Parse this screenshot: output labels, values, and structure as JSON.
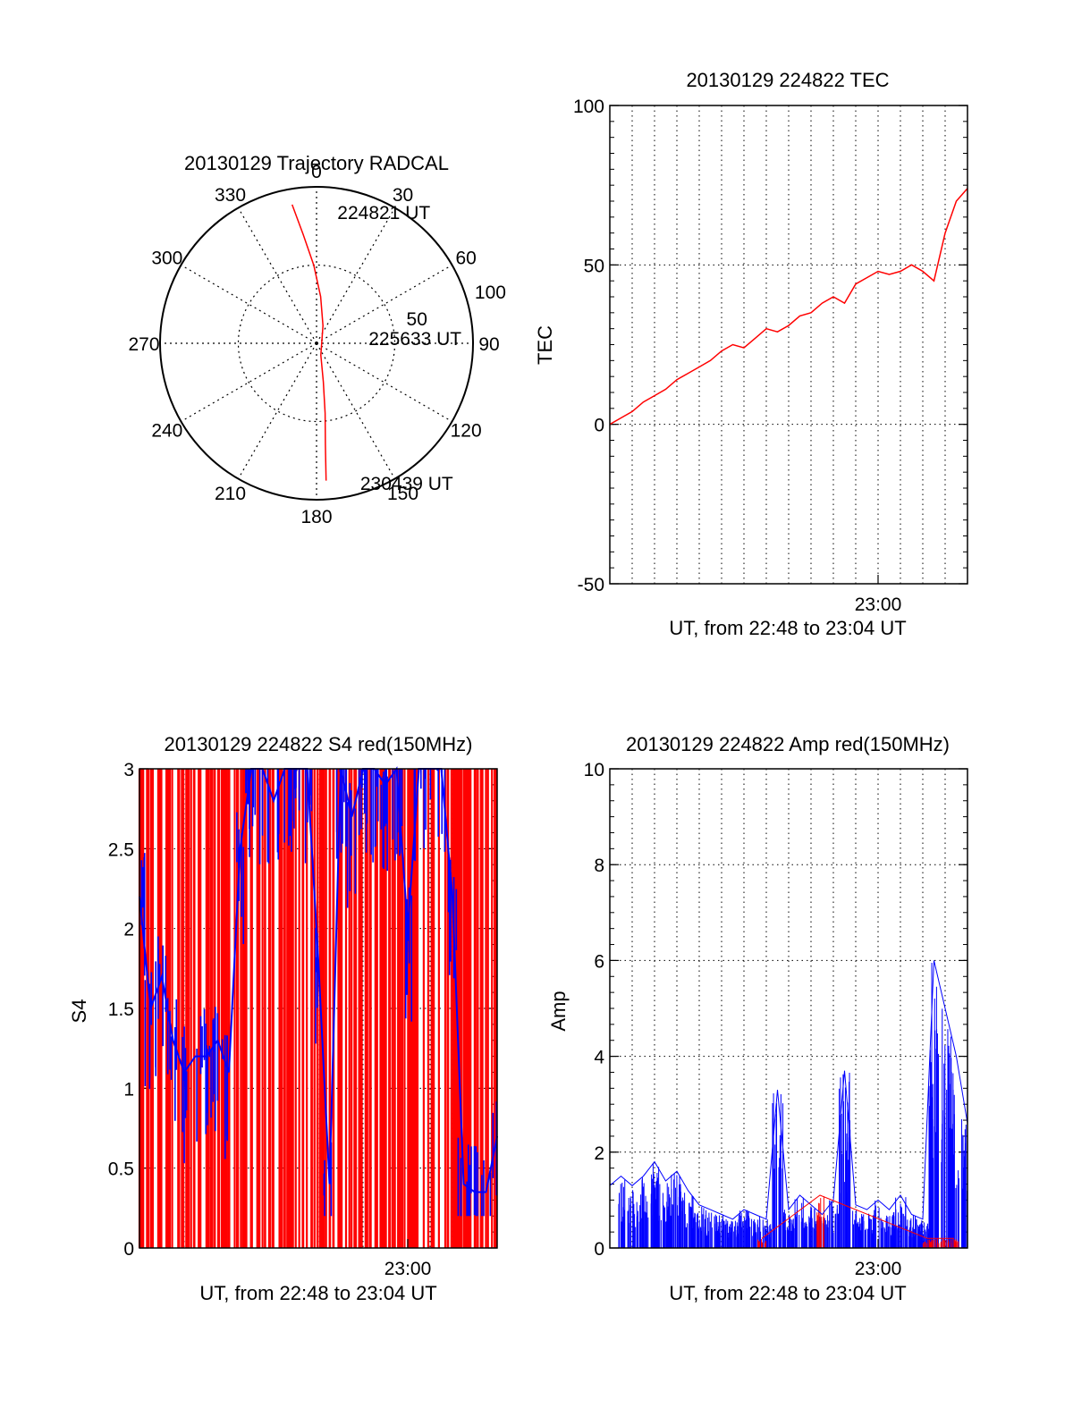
{
  "colors": {
    "red": "#ff0000",
    "blue": "#0000ff",
    "axis": "#000000",
    "grid": "#000000"
  },
  "chart_data": [
    {
      "id": "trajectory",
      "type": "polar",
      "title": "20130129 Trajectory RADCAL",
      "azimuth_labels": [
        "0",
        "30",
        "60",
        "90",
        "120",
        "150",
        "180",
        "210",
        "240",
        "270",
        "300",
        "330"
      ],
      "radial_labels": [
        "50",
        "100"
      ],
      "rlim": [
        0,
        100
      ],
      "grid": true,
      "series": [
        {
          "color": "red",
          "points": [
            [
              -10,
              90
            ],
            [
              -7,
              70
            ],
            [
              -2,
              50
            ],
            [
              5,
              30
            ],
            [
              20,
              12
            ],
            [
              160,
              8
            ],
            [
              170,
              25
            ],
            [
              173,
              45
            ],
            [
              175,
              65
            ],
            [
              176,
              88
            ]
          ]
        }
      ],
      "annotations": [
        {
          "text": "224821 UT",
          "az": 12,
          "r": 86
        },
        {
          "text": "225633 UT",
          "az": 85,
          "r": 38
        },
        {
          "text": "230439 UT",
          "az": 160,
          "r": 95
        }
      ]
    },
    {
      "id": "tec",
      "type": "line",
      "title": "20130129 224822 TEC",
      "ylabel": "TEC",
      "xlabel": "UT, from 22:48 to 23:04 UT",
      "xticklabels": [
        "23:00"
      ],
      "yticklabels": [
        "100",
        "50",
        "0",
        "-50"
      ],
      "ylim": [
        -50,
        100
      ],
      "xlim": [
        0,
        16
      ],
      "x_units": "minutes after 22:48",
      "grid": true,
      "series": [
        {
          "color": "red",
          "x": [
            0,
            0.5,
            1,
            1.5,
            2,
            2.5,
            3,
            3.5,
            4,
            4.5,
            5,
            5.5,
            6,
            6.5,
            7,
            7.5,
            8,
            8.5,
            9,
            9.5,
            10,
            10.5,
            11,
            11.5,
            12,
            12.5,
            13,
            13.5,
            14,
            14.5,
            15,
            15.5,
            16
          ],
          "y": [
            0,
            2,
            4,
            7,
            9,
            11,
            14,
            16,
            18,
            20,
            23,
            25,
            24,
            27,
            30,
            29,
            31,
            34,
            35,
            38,
            40,
            38,
            44,
            46,
            48,
            47,
            48,
            50,
            48,
            45,
            60,
            70,
            74
          ]
        }
      ]
    },
    {
      "id": "s4",
      "type": "line",
      "title": "20130129 224822 S4 red(150MHz)",
      "ylabel": "S4",
      "xlabel": "UT, from 22:48 to 23:04 UT",
      "xticklabels": [
        "23:00"
      ],
      "yticklabels": [
        "3",
        "2.5",
        "2",
        "1.5",
        "1",
        "0.5",
        "0"
      ],
      "ylim": [
        0,
        3
      ],
      "xlim": [
        0,
        16
      ],
      "x_units": "minutes after 22:48",
      "grid": true,
      "series": [
        {
          "color": "red",
          "style": "dense vertical spikes spanning full range",
          "x": [
            0,
            1,
            2,
            3,
            4,
            5,
            6,
            7,
            8,
            9,
            10,
            11,
            12,
            13,
            14,
            15,
            16
          ],
          "y": [
            3,
            3,
            3,
            3,
            3,
            3,
            3,
            3,
            3,
            3,
            3,
            3,
            3,
            3,
            3,
            3,
            3
          ]
        },
        {
          "color": "blue",
          "x": [
            0,
            0.5,
            1,
            1.5,
            2,
            2.5,
            3,
            3.5,
            4,
            4.5,
            5,
            5.5,
            6,
            6.5,
            7,
            7.5,
            8,
            8.5,
            9,
            9.5,
            10,
            10.5,
            11,
            11.5,
            12,
            12.5,
            13,
            13.5,
            14,
            14.5,
            15,
            15.5,
            16
          ],
          "y": [
            2.2,
            1.5,
            1.7,
            1.3,
            1.1,
            1.2,
            1.2,
            1.3,
            1.1,
            2.5,
            3,
            3,
            2.8,
            3,
            3,
            3,
            1.8,
            0.4,
            3,
            2.7,
            3,
            3,
            2.9,
            3,
            2.0,
            3,
            3,
            3,
            2.2,
            0.4,
            0.35,
            0.35,
            0.7
          ]
        }
      ]
    },
    {
      "id": "amp",
      "type": "line",
      "title": "20130129 224822 Amp red(150MHz)",
      "ylabel": "Amp",
      "xlabel": "UT, from 22:48 to 23:04 UT",
      "xticklabels": [
        "23:00"
      ],
      "yticklabels": [
        "10",
        "8",
        "6",
        "4",
        "2",
        "0"
      ],
      "ylim": [
        0,
        10
      ],
      "xlim": [
        0,
        16
      ],
      "x_units": "minutes after 22:48",
      "grid": true,
      "series": [
        {
          "color": "blue",
          "x": [
            0,
            0.5,
            1,
            1.5,
            2,
            2.5,
            3,
            3.5,
            4,
            4.5,
            5,
            5.5,
            6,
            6.5,
            7,
            7.5,
            8,
            8.5,
            9,
            9.5,
            10,
            10.5,
            11,
            11.5,
            12,
            12.5,
            13,
            13.5,
            14,
            14.5,
            15,
            15.5,
            16
          ],
          "y": [
            1.3,
            1.5,
            1.3,
            1.5,
            1.8,
            1.4,
            1.6,
            1.2,
            0.9,
            0.8,
            0.7,
            0.6,
            0.8,
            0.7,
            0.6,
            3.3,
            0.8,
            1.1,
            0.9,
            0.7,
            1.0,
            3.7,
            0.9,
            0.8,
            1.0,
            0.8,
            1.1,
            0.7,
            0.6,
            6.0,
            5.0,
            4.0,
            2.6
          ]
        },
        {
          "color": "red",
          "x": [
            6.8,
            9.4,
            14.2,
            14.6,
            15.0,
            15.4
          ],
          "y": [
            0.2,
            1.1,
            0.2,
            0.2,
            0.2,
            0.2
          ]
        }
      ]
    }
  ]
}
